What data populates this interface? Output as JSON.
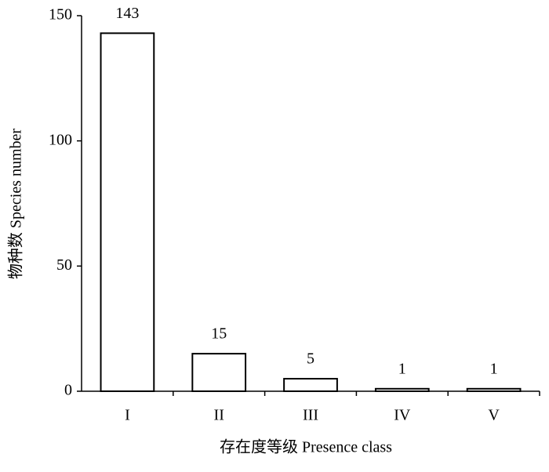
{
  "chart_data": {
    "type": "bar",
    "x_label": "存在度等级 Presence class",
    "y_label": "物种数 Species number",
    "categories": [
      "I",
      "II",
      "III",
      "IV",
      "V"
    ],
    "values": [
      143,
      15,
      5,
      1,
      1
    ],
    "color": "#ffffff",
    "edge_color": "#000000",
    "ylim": [
      0,
      150
    ],
    "yticks": [
      0,
      50,
      100,
      150
    ],
    "grid": false
  }
}
